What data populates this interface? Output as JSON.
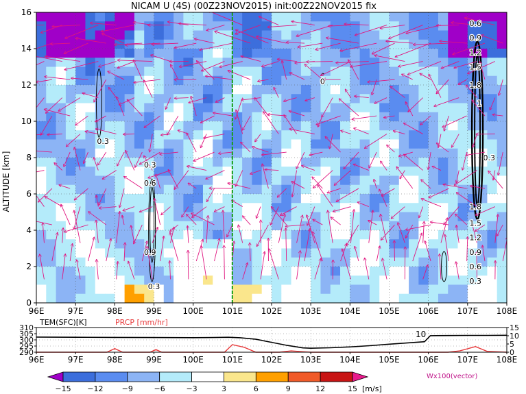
{
  "title": "NICAM U (4S) (00Z23NOV2015) init:00Z22NOV2015 fix",
  "chart_data": [
    {
      "type": "heatmap",
      "title": "NICAM U (4S) (00Z23NOV2015) init:00Z22NOV2015 fix",
      "ylabel": "ALTITUDE [km]",
      "x_ticks": [
        "96E",
        "97E",
        "98E",
        "99E",
        "100E",
        "101E",
        "102E",
        "103E",
        "104E",
        "105E",
        "106E",
        "107E",
        "108E"
      ],
      "xlim": [
        96,
        108
      ],
      "y_ticks": [
        "0",
        "2",
        "4",
        "6",
        "8",
        "10",
        "12",
        "14",
        "16"
      ],
      "ylim": [
        0,
        16
      ],
      "grid": true,
      "contour_labels": [
        {
          "x": 97.7,
          "y": 8.9,
          "text": "0.3"
        },
        {
          "x": 98.9,
          "y": 7.6,
          "text": "0.3"
        },
        {
          "x": 98.9,
          "y": 6.6,
          "text": "0.6"
        },
        {
          "x": 98.9,
          "y": 2.8,
          "text": "0.9"
        },
        {
          "x": 99.0,
          "y": 0.9,
          "text": "0.3"
        },
        {
          "x": 103.3,
          "y": 12.2,
          "text": "0"
        },
        {
          "x": 107.2,
          "y": 15.4,
          "text": "0.6"
        },
        {
          "x": 107.2,
          "y": 14.6,
          "text": "0.9"
        },
        {
          "x": 107.2,
          "y": 13.8,
          "text": "1.2"
        },
        {
          "x": 107.2,
          "y": 13.0,
          "text": "1.5"
        },
        {
          "x": 107.2,
          "y": 12.0,
          "text": "1.8"
        },
        {
          "x": 107.3,
          "y": 11.0,
          "text": "1"
        },
        {
          "x": 107.55,
          "y": 8.0,
          "text": "0.3"
        },
        {
          "x": 107.2,
          "y": 5.3,
          "text": "1.8"
        },
        {
          "x": 107.2,
          "y": 4.4,
          "text": "1.5"
        },
        {
          "x": 107.2,
          "y": 3.6,
          "text": "1.2"
        },
        {
          "x": 107.2,
          "y": 2.8,
          "text": "0.9"
        },
        {
          "x": 107.2,
          "y": 2.0,
          "text": "0.6"
        },
        {
          "x": 107.2,
          "y": 1.2,
          "text": "0.3"
        }
      ],
      "marker_line_x": 101.0
    },
    {
      "type": "line",
      "legend": [
        "TEM(SFC)[K]",
        "PRCP [mm/hr]"
      ],
      "x_ticks": [
        "96E",
        "97E",
        "98E",
        "99E",
        "100E",
        "101E",
        "102E",
        "103E",
        "104E",
        "105E",
        "106E",
        "107E",
        "108E"
      ],
      "xlim": [
        96,
        108
      ],
      "left_ticks": [
        "310",
        "305",
        "300",
        "295",
        "290"
      ],
      "left_lim": [
        290,
        310
      ],
      "right_ticks": [
        "15",
        "10",
        "5",
        "0"
      ],
      "right_lim": [
        0,
        15
      ],
      "annotation": "10",
      "series": [
        {
          "name": "TEM(SFC)[K]",
          "color": "#000000",
          "x": [
            96,
            97,
            98,
            99,
            100,
            100.5,
            100.9,
            101.2,
            101.6,
            102,
            102.4,
            102.8,
            103,
            103.5,
            104,
            104.5,
            105,
            105.5,
            105.9,
            106.05,
            106.5,
            107,
            107.5,
            108
          ],
          "y": [
            302.3,
            302.1,
            302.0,
            301.9,
            301.8,
            301.9,
            302.1,
            301.7,
            300.5,
            298.0,
            295.5,
            293.5,
            293.2,
            293.6,
            294.3,
            295.3,
            296.5,
            297.6,
            298.5,
            303.4,
            303.5,
            303.6,
            303.6,
            303.7
          ]
        },
        {
          "name": "PRCP [mm/hr]",
          "color": "#e8393a",
          "x": [
            96,
            97.8,
            98.0,
            98.2,
            98.9,
            99.05,
            99.2,
            100.8,
            101.0,
            101.3,
            101.6,
            102.2,
            102.5,
            102.8,
            103.0,
            106.5,
            106.8,
            107.2,
            107.5,
            108
          ],
          "y": [
            0,
            0,
            2.2,
            0,
            0,
            1.6,
            0,
            0,
            4.6,
            3.0,
            0,
            0,
            0.8,
            0.3,
            0,
            0,
            0.8,
            3.4,
            0.5,
            0
          ]
        }
      ]
    }
  ],
  "colorbar": {
    "ticks": [
      "-15",
      "-12",
      "-9",
      "-6",
      "-3",
      "3",
      "6",
      "9",
      "12",
      "15"
    ],
    "unit": "[m/s]",
    "colors": [
      "#a000c8",
      "#3c6edc",
      "#5a8cf0",
      "#8cb4f5",
      "#b4ebfa",
      "#ffffff",
      "#fae68c",
      "#ffa000",
      "#f05a28",
      "#c81414",
      "#e81a8c"
    ]
  },
  "vector_note": "Wx100(vector)",
  "colors": {
    "vector": "#e0157f",
    "marker_line": "#18a018",
    "gridline": "#555555"
  }
}
